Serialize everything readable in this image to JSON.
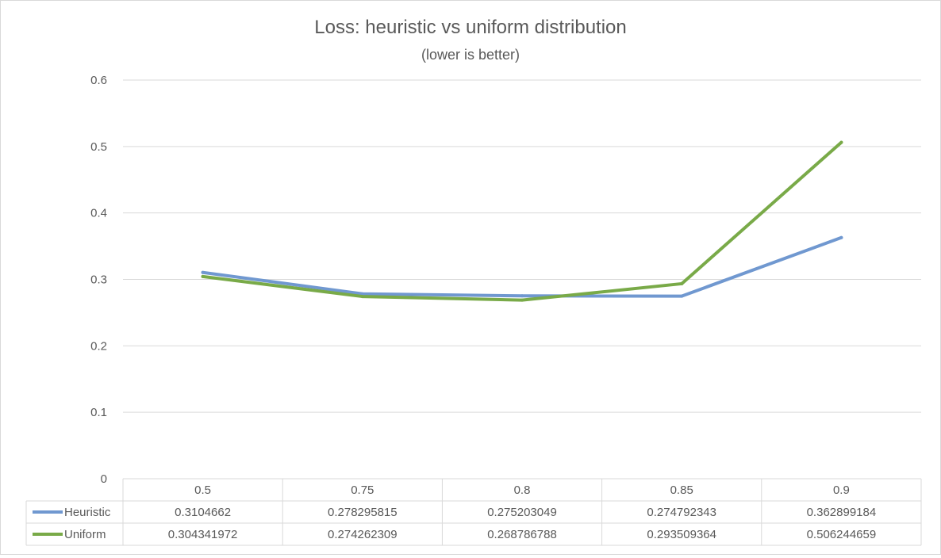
{
  "chart_data": {
    "type": "line",
    "title": "Loss: heuristic vs uniform distribution",
    "subtitle": "(lower is better)",
    "categories": [
      "0.5",
      "0.75",
      "0.8",
      "0.85",
      "0.9"
    ],
    "ylim": [
      0,
      0.6
    ],
    "yticks": [
      "0",
      "0.1",
      "0.2",
      "0.3",
      "0.4",
      "0.5",
      "0.6"
    ],
    "grid": true,
    "legend": "data-table",
    "series": [
      {
        "name": "Heuristic",
        "color": "#7098d0",
        "values": [
          0.3104662,
          0.278295815,
          0.275203049,
          0.274792343,
          0.362899184
        ],
        "labels": [
          "0.3104662",
          "0.278295815",
          "0.275203049",
          "0.274792343",
          "0.362899184"
        ]
      },
      {
        "name": "Uniform",
        "color": "#79aa48",
        "values": [
          0.304341972,
          0.274262309,
          0.268786788,
          0.293509364,
          0.506244659
        ],
        "labels": [
          "0.304341972",
          "0.274262309",
          "0.268786788",
          "0.293509364",
          "0.506244659"
        ]
      }
    ]
  }
}
